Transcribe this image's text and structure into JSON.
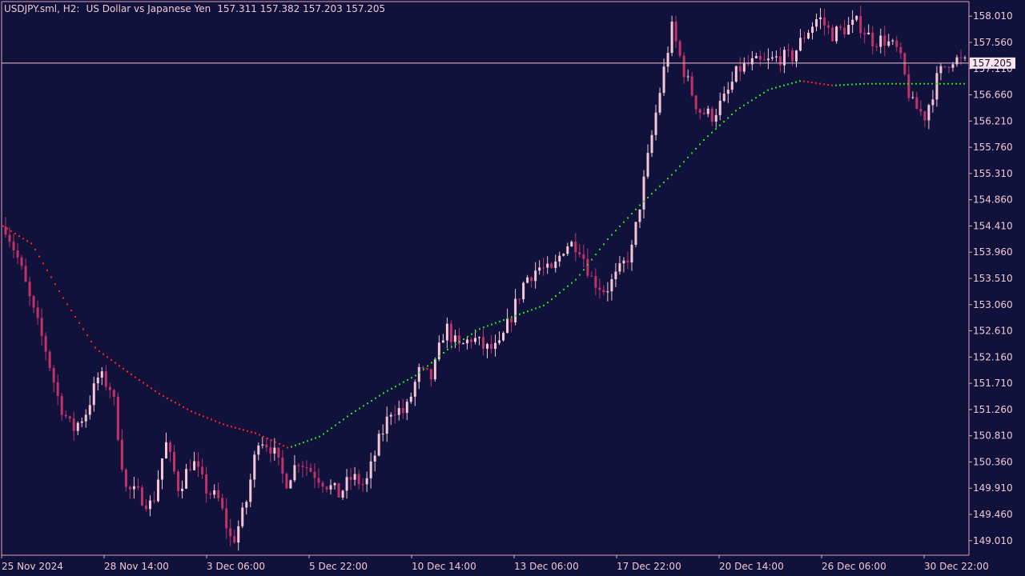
{
  "header": {
    "symbol": "USDJPY.sml, H2:",
    "description": "US Dollar vs Japanese Yen",
    "ohlc": "157.311 157.382 157.203 157.205"
  },
  "colors": {
    "background": "#10123b",
    "axis": "#e0a0b8",
    "bull_candle": "#f6c6d6",
    "bear_candle": "#c0336a",
    "ma_down": "#ff2020",
    "ma_up": "#22e022",
    "price_line": "#f0c0d0",
    "price_tag_bg": "#fde6ee",
    "price_tag_text": "#10123b"
  },
  "chart_data": {
    "type": "candlestick",
    "instrument": "USDJPY",
    "timeframe": "H2",
    "current_price": "157.205",
    "ylim": [
      148.76,
      158.26
    ],
    "y_ticks": [
      "158.010",
      "157.560",
      "157.110",
      "156.660",
      "156.210",
      "155.760",
      "155.310",
      "154.860",
      "154.410",
      "153.960",
      "153.510",
      "153.060",
      "152.610",
      "152.160",
      "151.710",
      "151.260",
      "150.810",
      "150.360",
      "149.910",
      "149.460",
      "149.010"
    ],
    "x_ticks": [
      "25 Nov 2024",
      "28 Nov 14:00",
      "3 Dec 06:00",
      "5 Dec 22:00",
      "10 Dec 14:00",
      "13 Dec 06:00",
      "17 Dec 22:00",
      "20 Dec 14:00",
      "26 Dec 06:00",
      "30 Dec 22:00"
    ],
    "bar_count": 240,
    "price_path": [
      [
        0,
        154.4
      ],
      [
        10,
        153.8
      ],
      [
        20,
        153.0
      ],
      [
        30,
        152.3
      ],
      [
        40,
        151.4
      ],
      [
        50,
        150.9
      ],
      [
        60,
        151.2
      ],
      [
        70,
        151.85
      ],
      [
        80,
        151.6
      ],
      [
        90,
        149.9
      ],
      [
        100,
        149.8
      ],
      [
        110,
        149.6
      ],
      [
        120,
        150.7
      ],
      [
        130,
        149.9
      ],
      [
        140,
        150.4
      ],
      [
        150,
        149.9
      ],
      [
        160,
        149.7
      ],
      [
        170,
        148.95
      ],
      [
        180,
        149.6
      ],
      [
        190,
        150.8
      ],
      [
        200,
        150.6
      ],
      [
        210,
        150.0
      ],
      [
        220,
        150.4
      ],
      [
        230,
        150.2
      ],
      [
        240,
        150.0
      ],
      [
        250,
        149.8
      ],
      [
        260,
        150.1
      ],
      [
        270,
        149.95
      ],
      [
        280,
        150.7
      ],
      [
        290,
        151.3
      ],
      [
        300,
        151.2
      ],
      [
        310,
        151.9
      ],
      [
        320,
        151.8
      ],
      [
        330,
        152.7
      ],
      [
        340,
        152.3
      ],
      [
        350,
        152.5
      ],
      [
        360,
        152.3
      ],
      [
        370,
        152.3
      ],
      [
        380,
        152.9
      ],
      [
        390,
        153.5
      ],
      [
        400,
        153.7
      ],
      [
        410,
        153.6
      ],
      [
        420,
        154.1
      ],
      [
        430,
        154.1
      ],
      [
        440,
        153.5
      ],
      [
        450,
        153.3
      ],
      [
        460,
        153.6
      ],
      [
        470,
        154.0
      ],
      [
        480,
        155.3
      ],
      [
        490,
        156.6
      ],
      [
        500,
        157.8
      ],
      [
        510,
        157.0
      ],
      [
        520,
        156.4
      ],
      [
        530,
        156.3
      ],
      [
        540,
        156.6
      ],
      [
        550,
        157.1
      ],
      [
        560,
        157.2
      ],
      [
        570,
        157.2
      ],
      [
        580,
        157.3
      ],
      [
        590,
        157.3
      ],
      [
        600,
        157.7
      ],
      [
        610,
        158.0
      ],
      [
        620,
        157.7
      ],
      [
        630,
        157.8
      ],
      [
        640,
        157.9
      ],
      [
        650,
        157.6
      ],
      [
        660,
        157.6
      ],
      [
        670,
        157.4
      ],
      [
        680,
        156.5
      ],
      [
        690,
        156.3
      ],
      [
        700,
        157.0
      ],
      [
        710,
        157.3
      ],
      [
        720,
        157.2
      ]
    ],
    "ma_path": [
      [
        0,
        154.44
      ],
      [
        40,
        154.1
      ],
      [
        80,
        153.15
      ],
      [
        120,
        152.3
      ],
      [
        160,
        151.9
      ],
      [
        200,
        151.52
      ],
      [
        240,
        151.22
      ],
      [
        280,
        151.0
      ],
      [
        320,
        150.85
      ],
      [
        360,
        150.6
      ],
      [
        400,
        150.8
      ],
      [
        440,
        151.2
      ],
      [
        480,
        151.55
      ],
      [
        520,
        151.85
      ],
      [
        560,
        152.3
      ],
      [
        600,
        152.65
      ],
      [
        640,
        152.85
      ],
      [
        680,
        153.05
      ],
      [
        720,
        153.5
      ],
      [
        760,
        154.2
      ],
      [
        800,
        154.78
      ],
      [
        840,
        155.3
      ],
      [
        880,
        155.9
      ],
      [
        920,
        156.4
      ],
      [
        960,
        156.75
      ],
      [
        1000,
        156.9
      ],
      [
        1040,
        156.82
      ],
      [
        1080,
        156.85
      ]
    ],
    "ma_trend": "red while falling, green while rising"
  }
}
